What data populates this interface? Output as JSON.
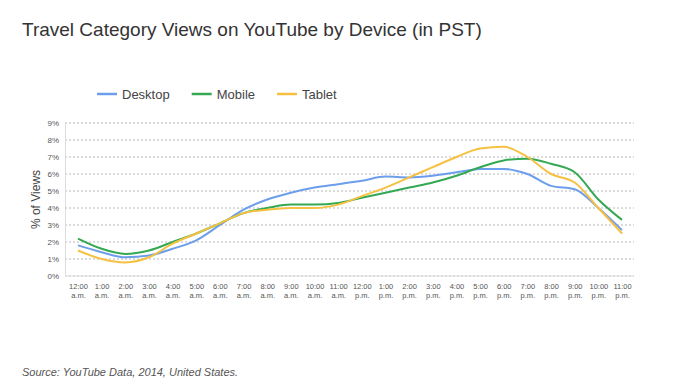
{
  "chart_data": {
    "type": "line",
    "title": "Travel Category Views on YouTube by Device (in PST)",
    "y_label": "% of Views",
    "source": "Source: YouTube Data, 2014, United States.",
    "categories": [
      "12:00 a.m.",
      "1:00 a.m.",
      "2:00 a.m.",
      "3:00 a.m.",
      "4:00 a.m.",
      "5:00 a.m.",
      "6:00 a.m.",
      "7:00 a.m.",
      "8:00 a.m.",
      "9:00 a.m.",
      "10:00 a.m.",
      "11:00 a.m.",
      "12:00 p.m.",
      "1:00 p.m.",
      "2:00 p.m.",
      "3:00 p.m.",
      "4:00 p.m.",
      "5:00 p.m.",
      "6:00 p.m.",
      "7:00 p.m.",
      "8:00 p.m.",
      "9:00 p.m.",
      "10:00 p.m.",
      "11:00 p.m."
    ],
    "series": [
      {
        "name": "Desktop",
        "color": "#6d9eeb",
        "values": [
          1.8,
          1.4,
          1.1,
          1.2,
          1.6,
          2.1,
          3.0,
          3.9,
          4.5,
          4.9,
          5.2,
          5.4,
          5.6,
          5.85,
          5.8,
          5.9,
          6.1,
          6.3,
          6.3,
          6.0,
          5.3,
          5.1,
          4.0,
          2.7
        ]
      },
      {
        "name": "Mobile",
        "color": "#34a853",
        "values": [
          2.2,
          1.6,
          1.3,
          1.5,
          2.0,
          2.5,
          3.1,
          3.7,
          4.0,
          4.2,
          4.2,
          4.3,
          4.6,
          4.9,
          5.2,
          5.5,
          5.9,
          6.4,
          6.8,
          6.9,
          6.6,
          6.1,
          4.5,
          3.3
        ]
      },
      {
        "name": "Tablet",
        "color": "#f6c142",
        "values": [
          1.5,
          1.0,
          0.8,
          1.1,
          1.9,
          2.5,
          3.1,
          3.7,
          3.9,
          4.0,
          4.0,
          4.2,
          4.7,
          5.2,
          5.8,
          6.4,
          7.0,
          7.5,
          7.6,
          7.0,
          6.0,
          5.5,
          4.0,
          2.5
        ]
      }
    ],
    "ylim": [
      0,
      9
    ],
    "yticks": [
      {
        "value": 0,
        "label": "0%"
      },
      {
        "value": 1,
        "label": "1%"
      },
      {
        "value": 2,
        "label": "2%"
      },
      {
        "value": 3,
        "label": "3%"
      },
      {
        "value": 4,
        "label": "4%"
      },
      {
        "value": 5,
        "label": "5%"
      },
      {
        "value": 6,
        "label": "6%"
      },
      {
        "value": 7,
        "label": "7%"
      },
      {
        "value": 8,
        "label": "8%"
      },
      {
        "value": 9,
        "label": "9%"
      }
    ],
    "grid": true,
    "legend": "top"
  }
}
